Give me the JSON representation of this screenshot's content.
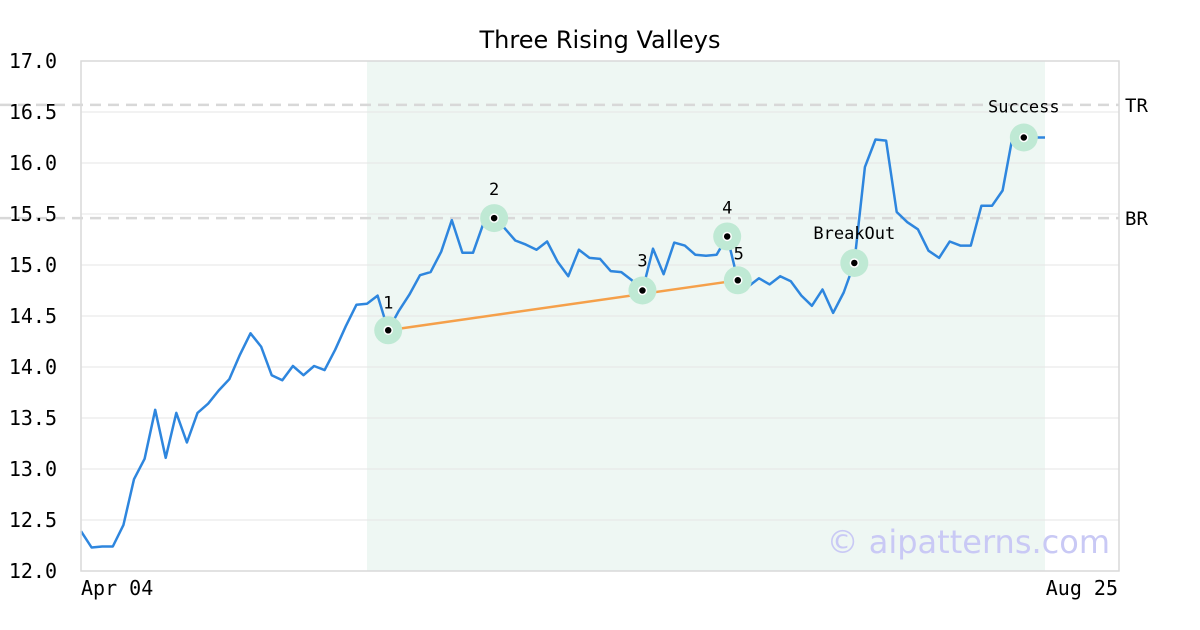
{
  "chart_data": {
    "type": "line",
    "title": "Three Rising Valleys",
    "ylim": [
      12.0,
      17.0
    ],
    "yticks": [
      "12.0",
      "12.5",
      "13.0",
      "13.5",
      "14.0",
      "14.5",
      "15.0",
      "15.5",
      "16.0",
      "16.5",
      "17.0"
    ],
    "xlabels": {
      "start": "Apr 04",
      "end": "Aug 25"
    },
    "grid": "horizontal",
    "series": [
      {
        "values": [
          12.39,
          12.23,
          12.24,
          12.24,
          12.45,
          12.9,
          13.1,
          13.58,
          13.11,
          13.55,
          13.26,
          13.55,
          13.64,
          13.77,
          13.88,
          14.12,
          14.33,
          14.2,
          13.92,
          13.87,
          14.01,
          13.92,
          14.01,
          13.97,
          14.17,
          14.4,
          14.61,
          14.62,
          14.7,
          14.36,
          14.55,
          14.71,
          14.9,
          14.93,
          15.13,
          15.44,
          15.12,
          15.12,
          15.41,
          15.46,
          15.36,
          15.24,
          15.2,
          15.15,
          15.23,
          15.03,
          14.89,
          15.15,
          15.07,
          15.06,
          14.94,
          14.93,
          14.85,
          14.75,
          15.16,
          14.91,
          15.22,
          15.19,
          15.1,
          15.09,
          15.1,
          15.28,
          14.85,
          14.79,
          14.87,
          14.81,
          14.89,
          14.84,
          14.7,
          14.6,
          14.76,
          14.53,
          14.73,
          15.02,
          15.96,
          16.23,
          16.22,
          15.52,
          15.42,
          15.35,
          15.14,
          15.07,
          15.23,
          15.19,
          15.19,
          15.58,
          15.58,
          15.73,
          16.29,
          16.25,
          16.25,
          16.25
        ]
      }
    ],
    "highlight_range": {
      "start_index": 27,
      "end_index": 91
    },
    "levels": [
      {
        "label": "TR",
        "value": 16.57
      },
      {
        "label": "BR",
        "value": 15.46
      }
    ],
    "points": [
      {
        "label": "1",
        "index": 29,
        "value": 14.36
      },
      {
        "label": "2",
        "index": 39,
        "value": 15.46
      },
      {
        "label": "3",
        "index": 53,
        "value": 14.75
      },
      {
        "label": "4",
        "index": 61,
        "value": 15.28
      },
      {
        "label": "5",
        "index": 62,
        "value": 14.85
      },
      {
        "label": "BreakOut",
        "index": 73,
        "value": 15.02
      },
      {
        "label": "Success",
        "index": 89,
        "value": 16.25
      }
    ],
    "trendline": {
      "from_point": "1",
      "to_point": "5"
    },
    "colors": {
      "line": "#2e86de",
      "trendline": "#f5a04a",
      "highlight": "#eef7f3",
      "marker_halo": "#bfe9d4",
      "level": "#d8d8d8",
      "grid": "#e6e6e6",
      "frame": "#d9d9d9"
    }
  },
  "watermark": "© aipatterns.com"
}
